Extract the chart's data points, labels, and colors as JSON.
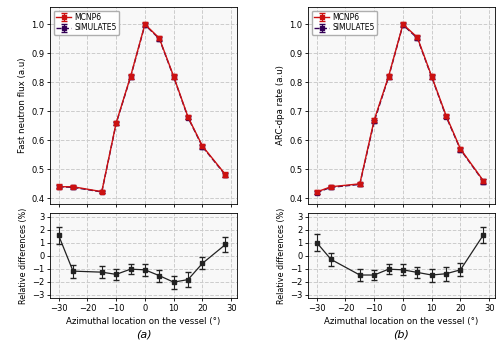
{
  "panel_a": {
    "x": [
      -30,
      -25,
      -15,
      -10,
      -5,
      0,
      5,
      10,
      15,
      20,
      28
    ],
    "mcnp6_y": [
      0.44,
      0.44,
      0.423,
      0.66,
      0.82,
      1.0,
      0.952,
      0.82,
      0.68,
      0.58,
      0.482
    ],
    "sim5_y": [
      0.44,
      0.438,
      0.422,
      0.658,
      0.818,
      0.998,
      0.95,
      0.818,
      0.678,
      0.578,
      0.48
    ],
    "mcnp6_err": [
      0.008,
      0.006,
      0.006,
      0.007,
      0.007,
      0.007,
      0.007,
      0.007,
      0.007,
      0.008,
      0.008
    ],
    "sim5_err": [
      0.006,
      0.005,
      0.005,
      0.006,
      0.006,
      0.006,
      0.006,
      0.006,
      0.006,
      0.007,
      0.007
    ],
    "ylabel": "Fast neutron flux (a.u)",
    "ylim": [
      0.38,
      1.06
    ],
    "yticks": [
      0.4,
      0.5,
      0.6,
      0.7,
      0.8,
      0.9,
      1.0
    ],
    "label": "(a)",
    "rel_diff_y": [
      1.55,
      -1.2,
      -1.28,
      -1.45,
      -1.05,
      -1.1,
      -1.55,
      -2.05,
      -1.85,
      -0.6,
      0.85
    ],
    "rel_diff_err": [
      0.65,
      0.5,
      0.45,
      0.4,
      0.4,
      0.45,
      0.45,
      0.5,
      0.55,
      0.45,
      0.55
    ]
  },
  "panel_b": {
    "x": [
      -30,
      -25,
      -15,
      -10,
      -5,
      0,
      5,
      10,
      15,
      20,
      28
    ],
    "mcnp6_y": [
      0.422,
      0.44,
      0.45,
      0.67,
      0.82,
      1.0,
      0.955,
      0.82,
      0.685,
      0.57,
      0.46
    ],
    "sim5_y": [
      0.42,
      0.438,
      0.448,
      0.665,
      0.818,
      0.998,
      0.952,
      0.818,
      0.682,
      0.568,
      0.458
    ],
    "mcnp6_err": [
      0.007,
      0.006,
      0.006,
      0.007,
      0.007,
      0.007,
      0.007,
      0.007,
      0.007,
      0.008,
      0.008
    ],
    "sim5_err": [
      0.006,
      0.005,
      0.005,
      0.006,
      0.006,
      0.006,
      0.006,
      0.006,
      0.006,
      0.007,
      0.007
    ],
    "ylabel": "ARC-dpa rate (a.u)",
    "ylim": [
      0.38,
      1.06
    ],
    "yticks": [
      0.4,
      0.5,
      0.6,
      0.7,
      0.8,
      0.9,
      1.0
    ],
    "label": "(b)",
    "rel_diff_y": [
      1.0,
      -0.3,
      -1.5,
      -1.5,
      -1.05,
      -1.1,
      -1.3,
      -1.5,
      -1.4,
      -1.1,
      1.6
    ],
    "rel_diff_err": [
      0.65,
      0.5,
      0.45,
      0.4,
      0.4,
      0.42,
      0.42,
      0.5,
      0.55,
      0.5,
      0.6
    ]
  },
  "shared": {
    "x_ticks": [
      -30,
      -20,
      -10,
      0,
      10,
      20,
      30
    ],
    "xlim": [
      -33,
      32
    ],
    "rel_ylim": [
      -3.3,
      3.3
    ],
    "rel_yticks": [
      -3,
      -2,
      -1,
      0,
      1,
      2,
      3
    ],
    "rel_ylabel": "Relative differences (%)",
    "xlabel": "Azimuthal location on the vessel (°)",
    "mcnp6_color": "#cc1111",
    "sim5_color": "#330055",
    "diff_color": "#222222",
    "grid_color": "#cccccc",
    "bg_color": "#f8f8f8",
    "legend_mcnp6": "MCNP6",
    "legend_sim5": "SIMULATE5"
  }
}
